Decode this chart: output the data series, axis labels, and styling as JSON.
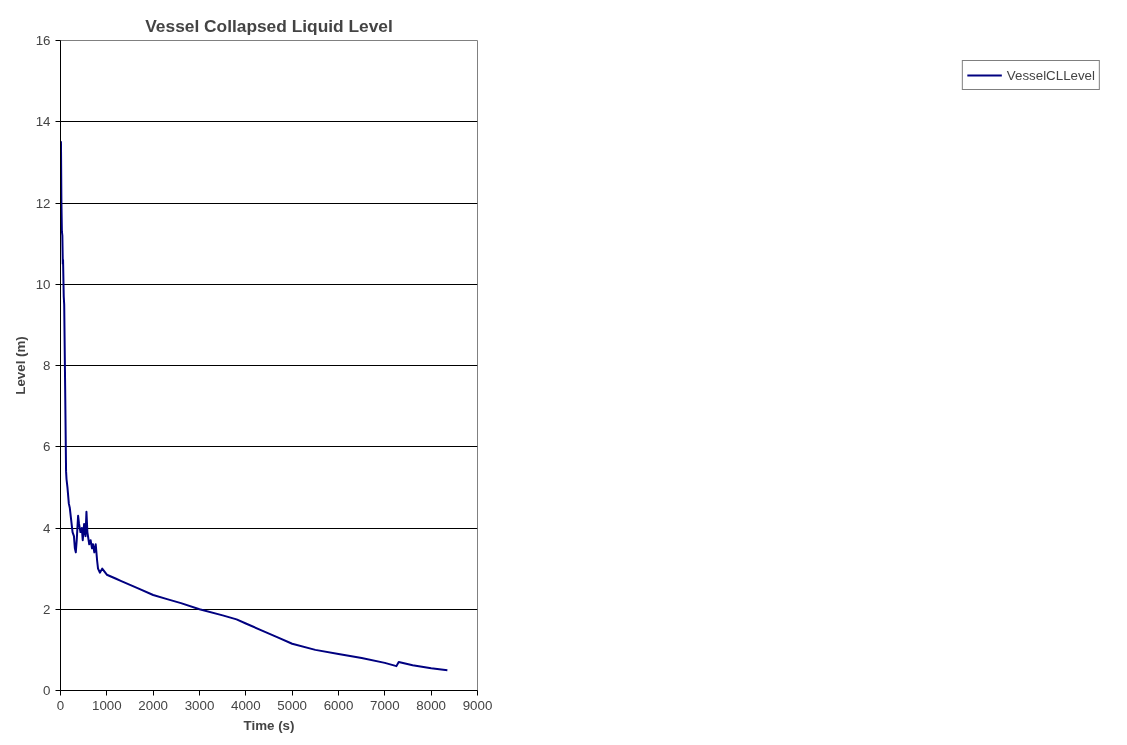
{
  "chart_data": {
    "type": "line",
    "title": "Vessel Collapsed Liquid Level",
    "xlabel": "Time (s)",
    "ylabel": "Level (m)",
    "xlim": [
      0,
      9000
    ],
    "xticks": [
      0,
      1000,
      2000,
      3000,
      4000,
      5000,
      6000,
      7000,
      8000,
      9000
    ],
    "ylim": [
      0,
      16
    ],
    "yticks": [
      0,
      2,
      4,
      6,
      8,
      10,
      12,
      14,
      16
    ],
    "grid": "y",
    "legend": "right",
    "marker": "none",
    "line_style": "solid",
    "series": [
      {
        "name": "VesselCLLevel",
        "color": "#000080",
        "x": [
          0,
          10,
          20,
          30,
          40,
          50,
          55,
          70,
          80,
          100,
          120,
          130,
          150,
          180,
          200,
          230,
          260,
          290,
          310,
          330,
          350,
          380,
          400,
          430,
          460,
          480,
          510,
          540,
          560,
          580,
          620,
          650,
          680,
          700,
          730,
          760,
          790,
          810,
          850,
          900,
          1000,
          1100,
          1200,
          1300,
          1500,
          1700,
          2000,
          2300,
          2600,
          3000,
          3500,
          3800,
          4000,
          4300,
          4700,
          5000,
          5500,
          6000,
          6500,
          7000,
          7250,
          7300,
          7600,
          8000,
          8350
        ],
        "values": [
          13.4,
          13.5,
          12.0,
          11.3,
          11.2,
          10.5,
          10.6,
          9.7,
          9.5,
          7.5,
          5.4,
          5.2,
          5.0,
          4.6,
          4.5,
          4.2,
          3.9,
          3.8,
          3.5,
          3.4,
          3.7,
          4.3,
          4.1,
          3.9,
          4.0,
          3.7,
          4.1,
          3.8,
          4.4,
          3.9,
          3.6,
          3.7,
          3.5,
          3.6,
          3.4,
          3.6,
          3.2,
          3.0,
          2.9,
          3.0,
          2.85,
          2.8,
          2.75,
          2.7,
          2.6,
          2.5,
          2.35,
          2.25,
          2.15,
          2.0,
          1.85,
          1.75,
          1.65,
          1.5,
          1.3,
          1.15,
          1.0,
          0.9,
          0.8,
          0.68,
          0.6,
          0.7,
          0.62,
          0.55,
          0.5
        ]
      }
    ]
  }
}
